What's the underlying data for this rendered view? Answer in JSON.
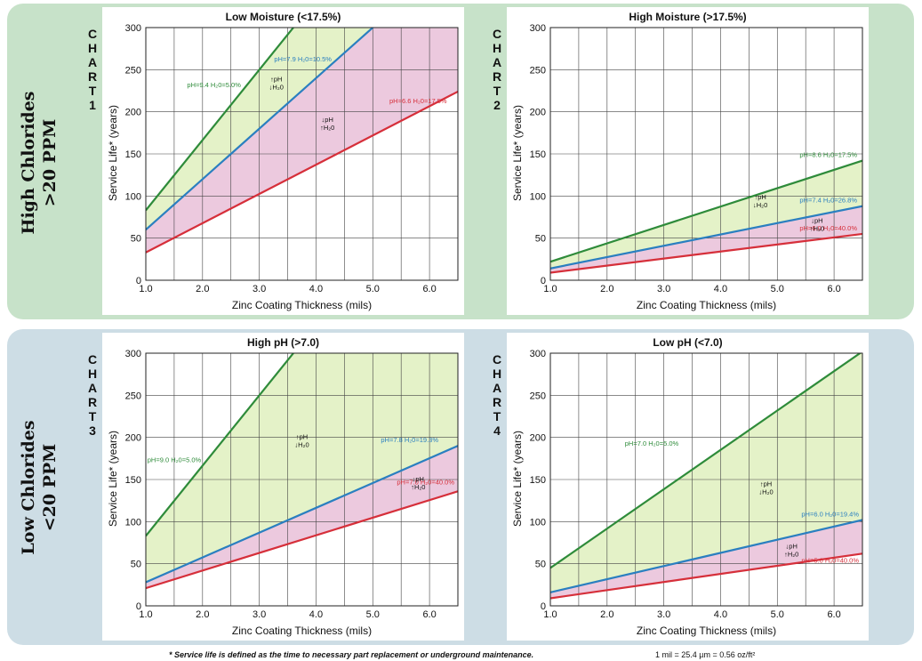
{
  "bands": [
    {
      "label_line1": "High Chlorides",
      "label_line2": ">20 PPM"
    },
    {
      "label_line1": "Low Chlorides",
      "label_line2": "<20 PPM"
    }
  ],
  "colors": {
    "green": "#2e8b3a",
    "blue": "#2a7fc0",
    "red": "#d62f3a",
    "green_fill": "#e4f2c8",
    "pink_fill": "#ecc9de",
    "top_band": "#c7e2c9",
    "bottom_band": "#cddde5"
  },
  "footnote": "* Service life is defined as the time to necessary part replacement or underground maintenance.",
  "conversion": "1 mil = 25.4 µm = 0.56 oz/ft²",
  "arrows": {
    "up_ph": "↑pH",
    "down_h2o": "↓H₂0",
    "down_ph": "↓pH",
    "up_h2o": "↑H₂0"
  },
  "chart_data": [
    {
      "type": "line",
      "chart_label": "CHART 1",
      "title": "Low Moisture (<17.5%)",
      "xlabel": "Zinc Coating Thickness (mils)",
      "ylabel": "Service Life* (years)",
      "xlim": [
        1.0,
        6.5
      ],
      "ylim": [
        0,
        300
      ],
      "xticks": [
        "1.0",
        "2.0",
        "3.0",
        "4.0",
        "5.0",
        "6.0"
      ],
      "yticks": [
        "0",
        "50",
        "100",
        "150",
        "200",
        "250",
        "300"
      ],
      "series": [
        {
          "name": "pH=9.4 H₂0=5.0%",
          "color": "green",
          "x": [
            1.0,
            3.6
          ],
          "y": [
            83,
            300
          ]
        },
        {
          "name": "pH=7.9 H₂0=10.5%",
          "color": "blue",
          "x": [
            1.0,
            5.0
          ],
          "y": [
            60,
            300
          ]
        },
        {
          "name": "pH=6.6 H₂0=17.5%",
          "color": "red",
          "x": [
            1.0,
            6.5
          ],
          "y": [
            33,
            224
          ]
        }
      ],
      "arrow_top": {
        "x": 3.3,
        "y": 236
      },
      "arrow_bottom": {
        "x": 4.2,
        "y": 188
      }
    },
    {
      "type": "line",
      "chart_label": "CHART 2",
      "title": "High Moisture (>17.5%)",
      "xlabel": "Zinc Coating Thickness (mils)",
      "ylabel": "Service Life* (years)",
      "xlim": [
        1.0,
        6.5
      ],
      "ylim": [
        0,
        300
      ],
      "xticks": [
        "1.0",
        "2.0",
        "3.0",
        "4.0",
        "5.0",
        "6.0"
      ],
      "yticks": [
        "0",
        "50",
        "100",
        "150",
        "200",
        "250",
        "300"
      ],
      "series": [
        {
          "name": "pH=8.6 H₂0=17.5%",
          "color": "green",
          "x": [
            1.0,
            6.5
          ],
          "y": [
            22,
            142
          ]
        },
        {
          "name": "pH=7.4 H₂0=26.8%",
          "color": "blue",
          "x": [
            1.0,
            6.5
          ],
          "y": [
            14,
            88
          ]
        },
        {
          "name": "pH=6.0 H₂0=40.0%",
          "color": "red",
          "x": [
            1.0,
            6.5
          ],
          "y": [
            9,
            55
          ]
        }
      ],
      "arrow_top": {
        "x": 4.7,
        "y": 96
      },
      "arrow_bottom": {
        "x": 5.7,
        "y": 68
      }
    },
    {
      "type": "line",
      "chart_label": "CHART 3",
      "title": "High pH (>7.0)",
      "xlabel": "Zinc Coating Thickness (mils)",
      "ylabel": "Service Life* (years)",
      "xlim": [
        1.0,
        6.5
      ],
      "ylim": [
        0,
        300
      ],
      "xticks": [
        "1.0",
        "2.0",
        "3.0",
        "4.0",
        "5.0",
        "6.0"
      ],
      "yticks": [
        "0",
        "50",
        "100",
        "150",
        "200",
        "250",
        "300"
      ],
      "series": [
        {
          "name": "pH=9.0 H₂0=5.0%",
          "color": "green",
          "x": [
            1.0,
            3.6
          ],
          "y": [
            83,
            300
          ]
        },
        {
          "name": "pH=7.8 H₂0=19.3%",
          "color": "blue",
          "x": [
            1.0,
            6.5
          ],
          "y": [
            28,
            190
          ]
        },
        {
          "name": "pH=7.0 H₂0=40.0%",
          "color": "red",
          "x": [
            1.0,
            6.5
          ],
          "y": [
            21,
            136
          ]
        }
      ],
      "arrow_top": {
        "x": 3.75,
        "y": 198
      },
      "arrow_bottom": {
        "x": 5.8,
        "y": 148
      }
    },
    {
      "type": "line",
      "chart_label": "CHART 4",
      "title": "Low pH (<7.0)",
      "xlabel": "Zinc Coating Thickness (mils)",
      "ylabel": "Service Life* (years)",
      "xlim": [
        1.0,
        6.5
      ],
      "ylim": [
        0,
        300
      ],
      "xticks": [
        "1.0",
        "2.0",
        "3.0",
        "4.0",
        "5.0",
        "6.0"
      ],
      "yticks": [
        "0",
        "50",
        "100",
        "150",
        "200",
        "250",
        "300"
      ],
      "series": [
        {
          "name": "pH=7.0 H₂0=5.0%",
          "color": "green",
          "x": [
            1.0,
            6.5
          ],
          "y": [
            45,
            302
          ]
        },
        {
          "name": "pH=6.0 H₂0=19.4%",
          "color": "blue",
          "x": [
            1.0,
            6.5
          ],
          "y": [
            16,
            102
          ]
        },
        {
          "name": "pH=5.0 H₂0=40.0%",
          "color": "red",
          "x": [
            1.0,
            6.5
          ],
          "y": [
            9,
            62
          ]
        }
      ],
      "arrow_top": {
        "x": 4.8,
        "y": 142
      },
      "arrow_bottom": {
        "x": 5.25,
        "y": 68
      }
    }
  ]
}
